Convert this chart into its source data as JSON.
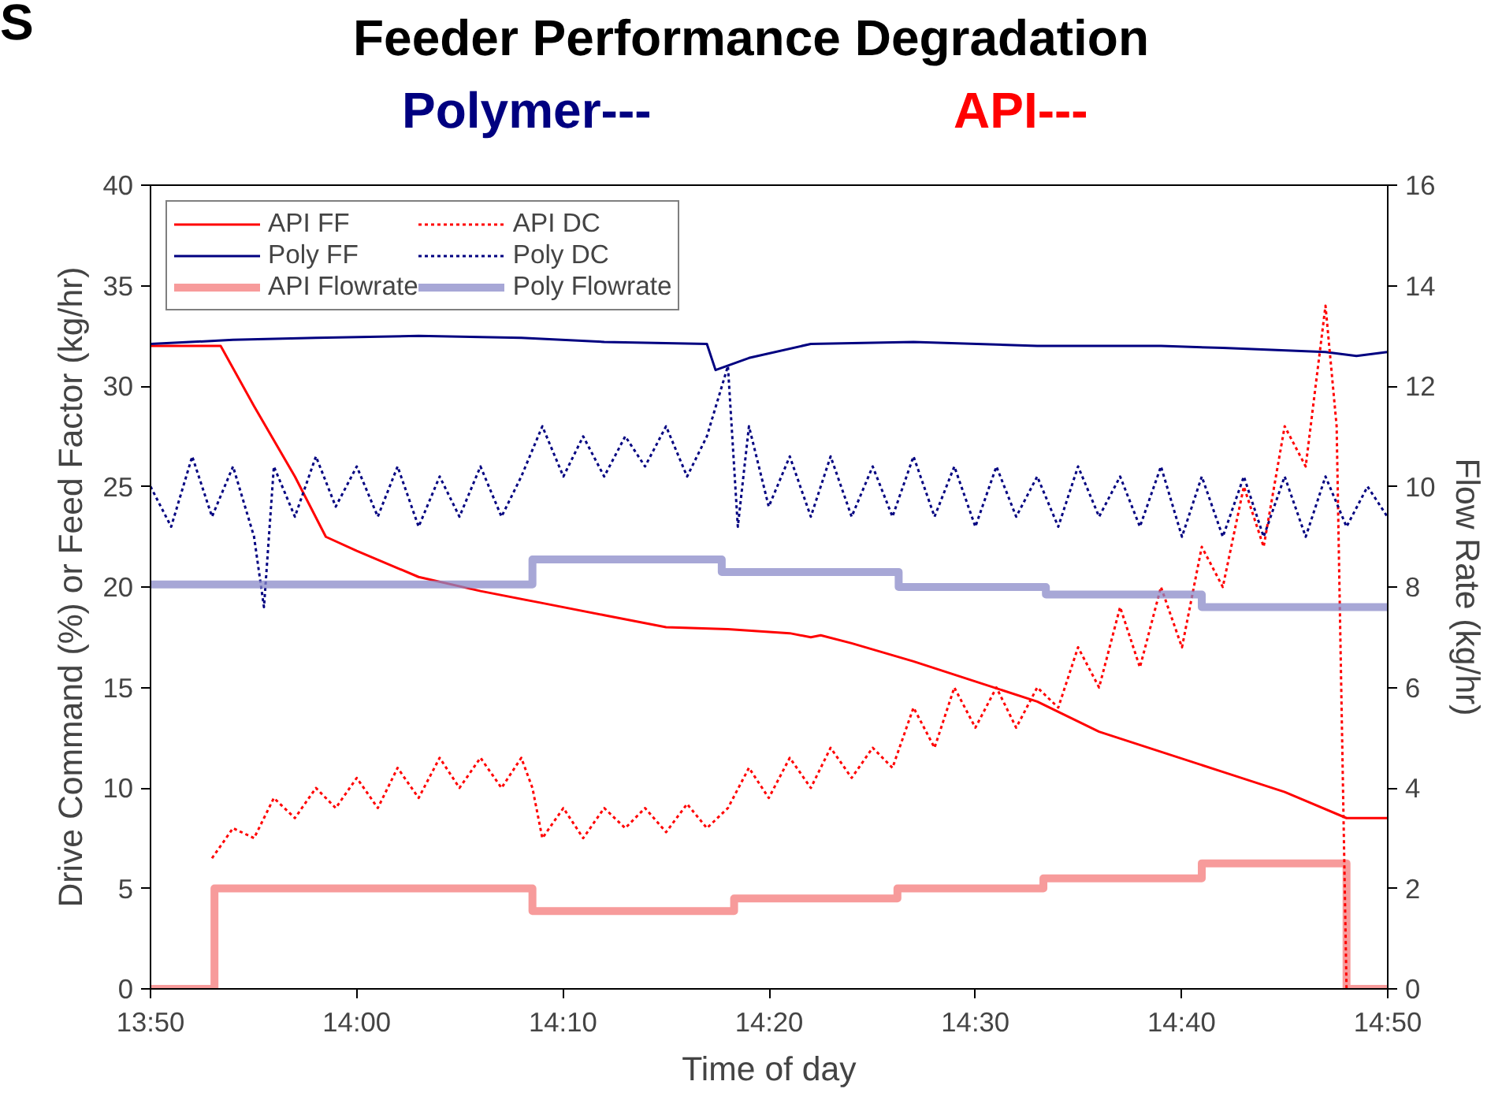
{
  "chart_data": {
    "type": "line",
    "title": "Feeder Performance Degradation",
    "subtitle": "Polymer---",
    "annotations": [
      "API---",
      "S"
    ],
    "xlabel": "Time of day",
    "ylabel": "Drive Command (%) or Feed Factor (kg/hr)",
    "y2label": "Flow Rate (kg/hr)",
    "xlim": [
      13.8333,
      14.8333
    ],
    "xticks": [
      {
        "value": 13.8333,
        "label": "13:50"
      },
      {
        "value": 14.0,
        "label": "14:00"
      },
      {
        "value": 14.1667,
        "label": "14:10"
      },
      {
        "value": 14.3333,
        "label": "14:20"
      },
      {
        "value": 14.5,
        "label": "14:30"
      },
      {
        "value": 14.6667,
        "label": "14:40"
      },
      {
        "value": 14.8333,
        "label": "14:50"
      }
    ],
    "ylim": [
      0,
      40
    ],
    "yticks": [
      0,
      5,
      10,
      15,
      20,
      25,
      30,
      35,
      40
    ],
    "y2lim": [
      0,
      16
    ],
    "y2ticks": [
      0,
      2,
      4,
      6,
      8,
      10,
      12,
      14,
      16
    ],
    "grid": false,
    "legend": "top left",
    "series": [
      {
        "name": "API FF",
        "color": "#ff0000",
        "line_style": "solid",
        "x": [
          13.8333,
          13.89,
          13.917,
          13.95,
          13.975,
          14.0,
          14.05,
          14.1,
          14.15,
          14.2,
          14.25,
          14.3,
          14.35,
          14.367,
          14.375,
          14.4,
          14.45,
          14.5,
          14.55,
          14.6,
          14.65,
          14.7,
          14.75,
          14.8,
          14.833
        ],
        "values": [
          32,
          32,
          29,
          25.5,
          22.5,
          21.8,
          20.5,
          19.8,
          19.2,
          18.6,
          18.0,
          17.9,
          17.7,
          17.5,
          17.6,
          17.2,
          16.3,
          15.3,
          14.3,
          12.8,
          11.8,
          10.8,
          9.8,
          8.5,
          8.5
        ]
      },
      {
        "name": "Poly FF",
        "color": "#000080",
        "line_style": "solid",
        "x": [
          13.8333,
          13.9,
          13.967,
          14.05,
          14.133,
          14.2,
          14.283,
          14.29,
          14.317,
          14.367,
          14.45,
          14.55,
          14.65,
          14.7,
          14.783,
          14.808,
          14.833
        ],
        "values": [
          32.1,
          32.3,
          32.4,
          32.5,
          32.4,
          32.2,
          32.1,
          30.8,
          31.4,
          32.1,
          32.2,
          32.0,
          32.0,
          31.9,
          31.7,
          31.5,
          31.7
        ]
      },
      {
        "name": "API Flowrate",
        "type": "step",
        "axis": "y2",
        "color": "#f47a7a",
        "line_style": "solid",
        "x": [
          13.8333,
          13.885,
          14.142,
          14.305,
          14.437,
          14.555,
          14.683,
          14.8,
          14.833
        ],
        "values": [
          0,
          2.0,
          1.55,
          1.8,
          2.0,
          2.2,
          2.5,
          0,
          0
        ]
      },
      {
        "name": "API DC",
        "color": "#ff0000",
        "line_style": "dotted",
        "x": [
          13.883,
          13.9,
          13.917,
          13.933,
          13.95,
          13.967,
          13.983,
          14.0,
          14.017,
          14.033,
          14.05,
          14.067,
          14.083,
          14.1,
          14.117,
          14.133,
          14.142,
          14.15,
          14.167,
          14.183,
          14.2,
          14.217,
          14.233,
          14.25,
          14.267,
          14.283,
          14.3,
          14.317,
          14.333,
          14.35,
          14.367,
          14.383,
          14.4,
          14.417,
          14.433,
          14.45,
          14.467,
          14.483,
          14.5,
          14.517,
          14.533,
          14.55,
          14.567,
          14.583,
          14.6,
          14.617,
          14.633,
          14.65,
          14.667,
          14.683,
          14.7,
          14.717,
          14.733,
          14.75,
          14.767,
          14.783,
          14.792,
          14.8
        ],
        "values": [
          6.5,
          8,
          7.5,
          9.5,
          8.5,
          10,
          9,
          10.5,
          9,
          11,
          9.5,
          11.5,
          10,
          11.5,
          10,
          11.5,
          10,
          7.5,
          9,
          7.5,
          9,
          8,
          9,
          7.8,
          9.2,
          8,
          9,
          11,
          9.5,
          11.5,
          10,
          12,
          10.5,
          12,
          11,
          14,
          12,
          15,
          13,
          15,
          13,
          15,
          14,
          17,
          15,
          19,
          16,
          20,
          17,
          22,
          20,
          25,
          22,
          28,
          26,
          34,
          28,
          0
        ]
      },
      {
        "name": "Poly DC",
        "color": "#000080",
        "line_style": "dotted",
        "x": [
          13.8333,
          13.85,
          13.867,
          13.883,
          13.9,
          13.917,
          13.925,
          13.933,
          13.95,
          13.967,
          13.983,
          14.0,
          14.017,
          14.033,
          14.05,
          14.067,
          14.083,
          14.1,
          14.117,
          14.133,
          14.15,
          14.167,
          14.183,
          14.2,
          14.217,
          14.233,
          14.25,
          14.267,
          14.283,
          14.3,
          14.308,
          14.317,
          14.333,
          14.35,
          14.367,
          14.383,
          14.4,
          14.417,
          14.433,
          14.45,
          14.467,
          14.483,
          14.5,
          14.517,
          14.533,
          14.55,
          14.567,
          14.583,
          14.6,
          14.617,
          14.633,
          14.65,
          14.667,
          14.683,
          14.7,
          14.717,
          14.733,
          14.75,
          14.767,
          14.783,
          14.8,
          14.817,
          14.833
        ],
        "values": [
          25,
          23,
          26.5,
          23.5,
          26,
          22.5,
          19,
          26,
          23.5,
          26.5,
          24,
          26,
          23.5,
          26,
          23,
          25.5,
          23.5,
          26,
          23.5,
          25.5,
          28,
          25.5,
          27.5,
          25.5,
          27.5,
          26,
          28,
          25.5,
          27.5,
          31,
          23,
          28,
          24,
          26.5,
          23.5,
          26.5,
          23.5,
          26,
          23.5,
          26.5,
          23.5,
          26,
          23,
          26,
          23.5,
          25.5,
          23,
          26,
          23.5,
          25.5,
          23,
          26,
          22.5,
          25.5,
          22.5,
          25.5,
          22.5,
          25.5,
          22.5,
          25.5,
          23,
          25,
          23.5
        ]
      },
      {
        "name": "Poly Flowrate",
        "type": "step",
        "axis": "y2",
        "color": "#8a8ac8",
        "line_style": "solid",
        "x": [
          13.8333,
          14.142,
          14.295,
          14.438,
          14.557,
          14.683,
          14.833
        ],
        "values": [
          8.05,
          8.55,
          8.3,
          8.0,
          7.85,
          7.6,
          7.6
        ]
      }
    ]
  }
}
